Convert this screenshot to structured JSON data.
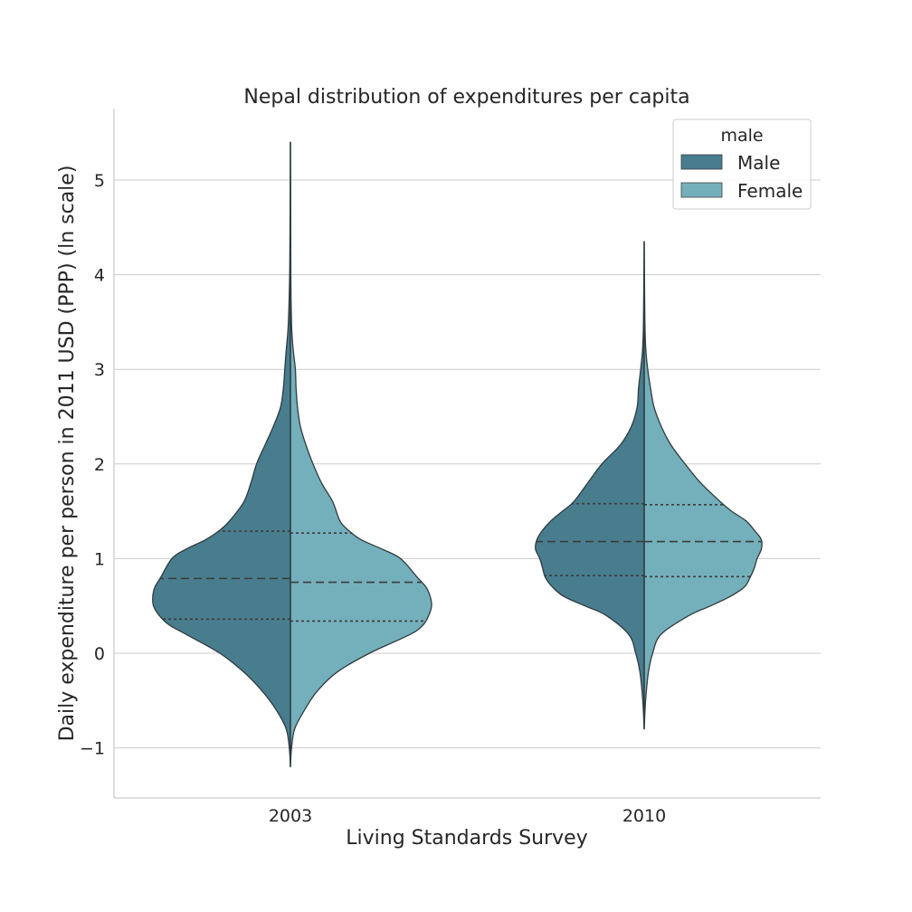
{
  "chart_data": {
    "type": "violin",
    "title": "Nepal distribution of expenditures per capita",
    "xlabel": "Living Standards Survey",
    "ylabel": "Daily expenditure per person in 2011 USD (PPP) (ln scale)",
    "categories": [
      "2003",
      "2010"
    ],
    "ylim": [
      -1.5,
      5.8
    ],
    "yticks": [
      -1,
      0,
      1,
      2,
      3,
      4,
      5
    ],
    "ytick_labels": [
      "−1",
      "0",
      "1",
      "2",
      "3",
      "4",
      "5"
    ],
    "grid": "horizontal",
    "split": true,
    "inner": "quartile",
    "legend": {
      "title": "male",
      "position": "top-right",
      "entries": [
        "Male",
        "Female"
      ]
    },
    "series": [
      {
        "name": "Male",
        "color": "#487d8e",
        "violins": [
          {
            "category": "2003",
            "quartiles": [
              0.36,
              0.79,
              1.29
            ],
            "profile": [
              [
                -1.2,
                0
              ],
              [
                -1.0,
                0.008
              ],
              [
                -0.8,
                0.03
              ],
              [
                -0.6,
                0.1
              ],
              [
                -0.4,
                0.2
              ],
              [
                -0.2,
                0.33
              ],
              [
                0.0,
                0.5
              ],
              [
                0.2,
                0.74
              ],
              [
                0.3,
                0.86
              ],
              [
                0.4,
                0.93
              ],
              [
                0.5,
                0.97
              ],
              [
                0.6,
                0.975
              ],
              [
                0.7,
                0.96
              ],
              [
                0.8,
                0.92
              ],
              [
                1.0,
                0.84
              ],
              [
                1.1,
                0.74
              ],
              [
                1.2,
                0.6
              ],
              [
                1.3,
                0.5
              ],
              [
                1.4,
                0.43
              ],
              [
                1.6,
                0.33
              ],
              [
                1.8,
                0.28
              ],
              [
                2.0,
                0.24
              ],
              [
                2.2,
                0.18
              ],
              [
                2.4,
                0.12
              ],
              [
                2.6,
                0.07
              ],
              [
                2.8,
                0.05
              ],
              [
                3.0,
                0.04
              ],
              [
                3.2,
                0.03
              ],
              [
                3.4,
                0.018
              ],
              [
                3.6,
                0.012
              ],
              [
                3.8,
                0.008
              ],
              [
                4.2,
                0.004
              ],
              [
                5.4,
                0
              ]
            ]
          },
          {
            "category": "2010",
            "quartiles": [
              0.82,
              1.18,
              1.58
            ],
            "profile": [
              [
                -0.8,
                0
              ],
              [
                -0.5,
                0.01
              ],
              [
                -0.2,
                0.03
              ],
              [
                0.0,
                0.06
              ],
              [
                0.2,
                0.11
              ],
              [
                0.4,
                0.27
              ],
              [
                0.5,
                0.42
              ],
              [
                0.6,
                0.57
              ],
              [
                0.7,
                0.65
              ],
              [
                0.8,
                0.7
              ],
              [
                0.9,
                0.72
              ],
              [
                1.0,
                0.74
              ],
              [
                1.1,
                0.77
              ],
              [
                1.2,
                0.76
              ],
              [
                1.3,
                0.72
              ],
              [
                1.4,
                0.66
              ],
              [
                1.5,
                0.58
              ],
              [
                1.6,
                0.5
              ],
              [
                1.8,
                0.4
              ],
              [
                2.0,
                0.3
              ],
              [
                2.2,
                0.17
              ],
              [
                2.4,
                0.09
              ],
              [
                2.6,
                0.05
              ],
              [
                2.8,
                0.04
              ],
              [
                3.0,
                0.025
              ],
              [
                3.2,
                0.012
              ],
              [
                3.5,
                0.005
              ],
              [
                4.35,
                0
              ]
            ]
          }
        ]
      },
      {
        "name": "Female",
        "color": "#74b0bb",
        "violins": [
          {
            "category": "2003",
            "quartiles": [
              0.34,
              0.75,
              1.27
            ],
            "profile": [
              [
                -1.2,
                0
              ],
              [
                -1.0,
                0.008
              ],
              [
                -0.8,
                0.03
              ],
              [
                -0.6,
                0.1
              ],
              [
                -0.4,
                0.19
              ],
              [
                -0.2,
                0.33
              ],
              [
                0.0,
                0.56
              ],
              [
                0.2,
                0.85
              ],
              [
                0.3,
                0.94
              ],
              [
                0.4,
                0.98
              ],
              [
                0.5,
                1.0
              ],
              [
                0.6,
                0.99
              ],
              [
                0.7,
                0.96
              ],
              [
                0.8,
                0.9
              ],
              [
                1.0,
                0.78
              ],
              [
                1.1,
                0.65
              ],
              [
                1.2,
                0.5
              ],
              [
                1.3,
                0.41
              ],
              [
                1.4,
                0.35
              ],
              [
                1.6,
                0.3
              ],
              [
                1.8,
                0.22
              ],
              [
                2.0,
                0.16
              ],
              [
                2.2,
                0.11
              ],
              [
                2.4,
                0.07
              ],
              [
                2.6,
                0.05
              ],
              [
                2.8,
                0.04
              ],
              [
                3.0,
                0.035
              ],
              [
                3.2,
                0.02
              ],
              [
                3.4,
                0.01
              ],
              [
                3.6,
                0.006
              ],
              [
                4.0,
                0.003
              ],
              [
                5.4,
                0
              ]
            ]
          },
          {
            "category": "2010",
            "quartiles": [
              0.81,
              1.18,
              1.57
            ],
            "profile": [
              [
                -0.8,
                0
              ],
              [
                -0.5,
                0.01
              ],
              [
                -0.2,
                0.03
              ],
              [
                0.0,
                0.06
              ],
              [
                0.2,
                0.12
              ],
              [
                0.4,
                0.32
              ],
              [
                0.5,
                0.47
              ],
              [
                0.6,
                0.61
              ],
              [
                0.7,
                0.71
              ],
              [
                0.8,
                0.75
              ],
              [
                0.9,
                0.78
              ],
              [
                1.0,
                0.8
              ],
              [
                1.1,
                0.83
              ],
              [
                1.2,
                0.83
              ],
              [
                1.3,
                0.78
              ],
              [
                1.4,
                0.72
              ],
              [
                1.5,
                0.62
              ],
              [
                1.6,
                0.54
              ],
              [
                1.8,
                0.4
              ],
              [
                2.0,
                0.29
              ],
              [
                2.2,
                0.19
              ],
              [
                2.4,
                0.12
              ],
              [
                2.6,
                0.07
              ],
              [
                2.8,
                0.045
              ],
              [
                3.0,
                0.025
              ],
              [
                3.2,
                0.012
              ],
              [
                3.5,
                0.005
              ],
              [
                4.35,
                0
              ]
            ]
          }
        ]
      }
    ]
  }
}
